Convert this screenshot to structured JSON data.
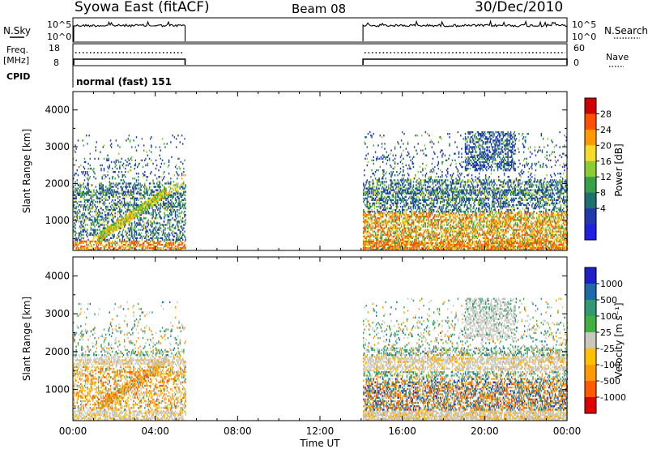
{
  "header": {
    "title": "Syowa East (fitACF)",
    "beam": "Beam 08",
    "date": "30/Dec/2010"
  },
  "nsky_panel": {
    "left_label": "N.Sky",
    "left_ticks": [
      "10^5",
      "10^0"
    ],
    "right_label": "N.Search",
    "right_ticks": [
      "10^5",
      "10^0"
    ]
  },
  "freq_panel": {
    "left_label_1": "Freq.",
    "left_label_2": "[MHz]",
    "left_ticks": [
      "18",
      "8"
    ],
    "right_label": "Nave",
    "right_ticks": [
      "60",
      "0"
    ]
  },
  "cpid_panel": {
    "label": "CPID",
    "mode_text": "normal (fast) 151"
  },
  "chart_data": [
    {
      "type": "heatmap",
      "name": "power",
      "ylabel": "Slant Range [km]",
      "yticks": [
        1000,
        2000,
        3000,
        4000
      ],
      "ylim": [
        180,
        4500
      ],
      "xlim": [
        0,
        24
      ],
      "colorbar_label": "Power [dB]",
      "colorbar_ticks": [
        "28",
        "24",
        "20",
        "16",
        "12",
        "8",
        "4"
      ],
      "colors": [
        "#d00000",
        "#ff5000",
        "#ff9a00",
        "#f6dc28",
        "#8ccc30",
        "#38a048",
        "#1f7070",
        "#2038b0",
        "#2020e0"
      ],
      "data_intervals_ut_hours": [
        [
          0.0,
          5.45
        ],
        [
          14.05,
          24.0
        ]
      ]
    },
    {
      "type": "heatmap",
      "name": "velocity",
      "ylabel": "Slant Range [km]",
      "yticks": [
        1000,
        2000,
        3000,
        4000
      ],
      "ylim": [
        180,
        4500
      ],
      "xlim": [
        0,
        24
      ],
      "xlabel": "Time UT",
      "xticklabels": [
        "00:00",
        "04:00",
        "08:00",
        "12:00",
        "16:00",
        "20:00",
        "00:00"
      ],
      "colorbar_label": "Velocity [m s⁻¹]",
      "colorbar_ticks": [
        "1000",
        "500",
        "100",
        "25",
        "-25",
        "-100",
        "-500",
        "-1000"
      ],
      "colors": [
        "#2020c8",
        "#1f6aa8",
        "#2f9a78",
        "#40b040",
        "#c8c8c0",
        "#ffc000",
        "#ff9a00",
        "#ff5a00",
        "#e00000"
      ],
      "data_intervals_ut_hours": [
        [
          0.0,
          5.45
        ],
        [
          14.05,
          24.0
        ]
      ]
    }
  ]
}
